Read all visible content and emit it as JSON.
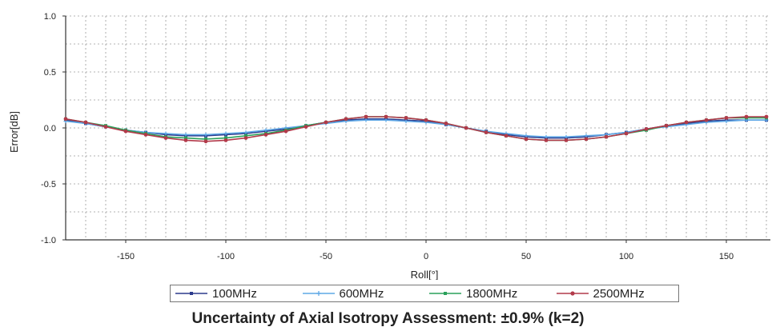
{
  "chart_data": {
    "type": "line",
    "title": "",
    "xlabel": "Roll[°]",
    "ylabel": "Error[dB]",
    "xlim": [
      -180,
      172
    ],
    "ylim": [
      -1.0,
      1.0
    ],
    "xticks": [
      -150,
      -100,
      -50,
      0,
      50,
      100,
      150
    ],
    "yticks": [
      -1.0,
      -0.5,
      0.0,
      0.5,
      1.0
    ],
    "ytick_labels": [
      "-1.0",
      "-0.5",
      "0.0",
      "0.5",
      "1.0"
    ],
    "grid": true,
    "legend_position": "bottom",
    "x": [
      -180,
      -170,
      -160,
      -150,
      -140,
      -130,
      -120,
      -110,
      -100,
      -90,
      -80,
      -70,
      -60,
      -50,
      -40,
      -30,
      -20,
      -10,
      0,
      10,
      20,
      30,
      40,
      50,
      60,
      70,
      80,
      90,
      100,
      110,
      120,
      130,
      140,
      150,
      160,
      170
    ],
    "series": [
      {
        "name": "100MHz",
        "color": "#2b3a8c",
        "marker": "square",
        "values": [
          0.07,
          0.04,
          0.01,
          -0.02,
          -0.04,
          -0.06,
          -0.07,
          -0.07,
          -0.06,
          -0.05,
          -0.03,
          -0.01,
          0.02,
          0.05,
          0.07,
          0.08,
          0.08,
          0.07,
          0.06,
          0.03,
          0.0,
          -0.03,
          -0.06,
          -0.08,
          -0.09,
          -0.09,
          -0.08,
          -0.06,
          -0.04,
          -0.01,
          0.02,
          0.04,
          0.06,
          0.07,
          0.07,
          0.07
        ]
      },
      {
        "name": "600MHz",
        "color": "#5fa8e6",
        "marker": "plus",
        "values": [
          0.06,
          0.04,
          0.01,
          -0.02,
          -0.04,
          -0.05,
          -0.06,
          -0.06,
          -0.05,
          -0.04,
          -0.02,
          0.0,
          0.02,
          0.04,
          0.06,
          0.07,
          0.07,
          0.06,
          0.05,
          0.03,
          0.0,
          -0.03,
          -0.05,
          -0.07,
          -0.08,
          -0.08,
          -0.07,
          -0.06,
          -0.04,
          -0.01,
          0.01,
          0.03,
          0.05,
          0.06,
          0.07,
          0.07
        ]
      },
      {
        "name": "1800MHz",
        "color": "#2aa05a",
        "marker": "square",
        "values": [
          0.08,
          0.05,
          0.02,
          -0.02,
          -0.05,
          -0.08,
          -0.09,
          -0.1,
          -0.09,
          -0.07,
          -0.05,
          -0.02,
          0.02,
          0.05,
          0.08,
          0.1,
          0.1,
          0.09,
          0.07,
          0.04,
          0.0,
          -0.04,
          -0.07,
          -0.1,
          -0.11,
          -0.11,
          -0.1,
          -0.08,
          -0.05,
          -0.02,
          0.02,
          0.05,
          0.07,
          0.09,
          0.09,
          0.09
        ]
      },
      {
        "name": "2500MHz",
        "color": "#b23a4a",
        "marker": "circle",
        "values": [
          0.08,
          0.05,
          0.01,
          -0.03,
          -0.06,
          -0.09,
          -0.11,
          -0.12,
          -0.11,
          -0.09,
          -0.06,
          -0.03,
          0.01,
          0.05,
          0.08,
          0.1,
          0.1,
          0.09,
          0.07,
          0.04,
          0.0,
          -0.04,
          -0.07,
          -0.1,
          -0.11,
          -0.11,
          -0.1,
          -0.08,
          -0.05,
          -0.01,
          0.02,
          0.05,
          0.07,
          0.09,
          0.1,
          0.1
        ]
      }
    ]
  },
  "caption": "Uncertainty of Axial Isotropy Assessment: ±0.9% (k=2)"
}
